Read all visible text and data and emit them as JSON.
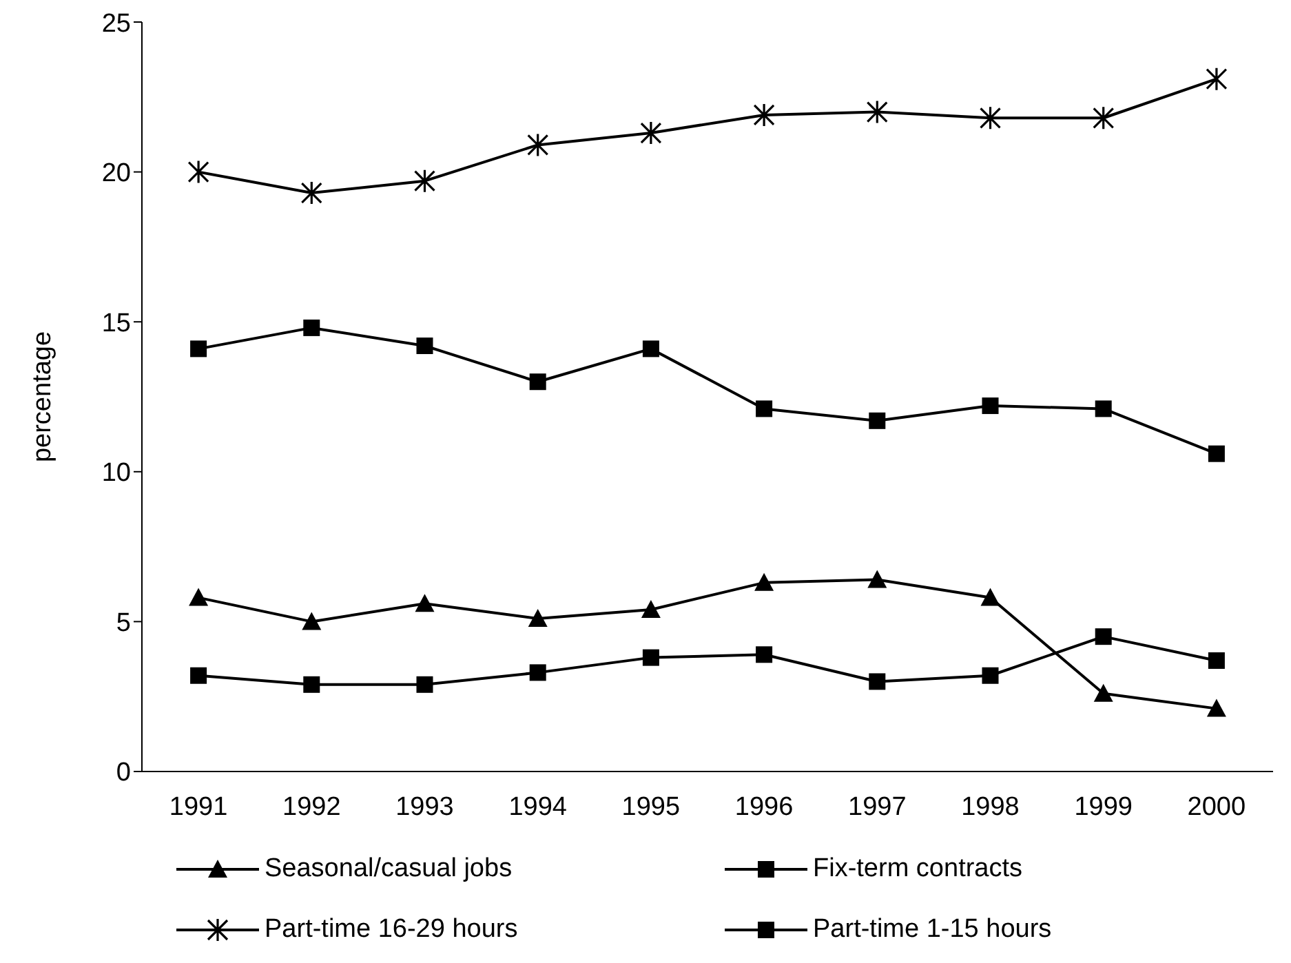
{
  "chart_data": {
    "type": "line",
    "ylabel": "percentage",
    "categories": [
      "1991",
      "1992",
      "1993",
      "1994",
      "1995",
      "1996",
      "1997",
      "1998",
      "1999",
      "2000"
    ],
    "series": [
      {
        "name": "Seasonal/casual jobs",
        "color": "#000000",
        "marker": "triangle",
        "values": [
          5.8,
          5.0,
          5.6,
          5.1,
          5.4,
          6.3,
          6.4,
          5.8,
          2.6,
          2.1
        ]
      },
      {
        "name": "Fix-term contracts",
        "color": "#000000",
        "marker": "square",
        "values": [
          3.2,
          2.9,
          2.9,
          3.3,
          3.8,
          3.9,
          3.0,
          3.2,
          4.5,
          3.7
        ]
      },
      {
        "name": "Part-time 16-29 hours",
        "color": "#000000",
        "marker": "cross",
        "values": [
          20.0,
          19.3,
          19.7,
          20.9,
          21.3,
          21.9,
          22.0,
          21.8,
          21.8,
          23.1
        ]
      },
      {
        "name": "Part-time 1-15 hours",
        "color": "#000000",
        "marker": "square",
        "values": [
          14.1,
          14.8,
          14.2,
          13.0,
          14.1,
          12.1,
          11.7,
          12.2,
          12.1,
          10.6
        ]
      }
    ],
    "ylim": [
      0,
      25
    ],
    "yticks": [
      0,
      5,
      10,
      15,
      20,
      25
    ],
    "grid": false,
    "legend": "bottom",
    "line_style": "solid"
  }
}
